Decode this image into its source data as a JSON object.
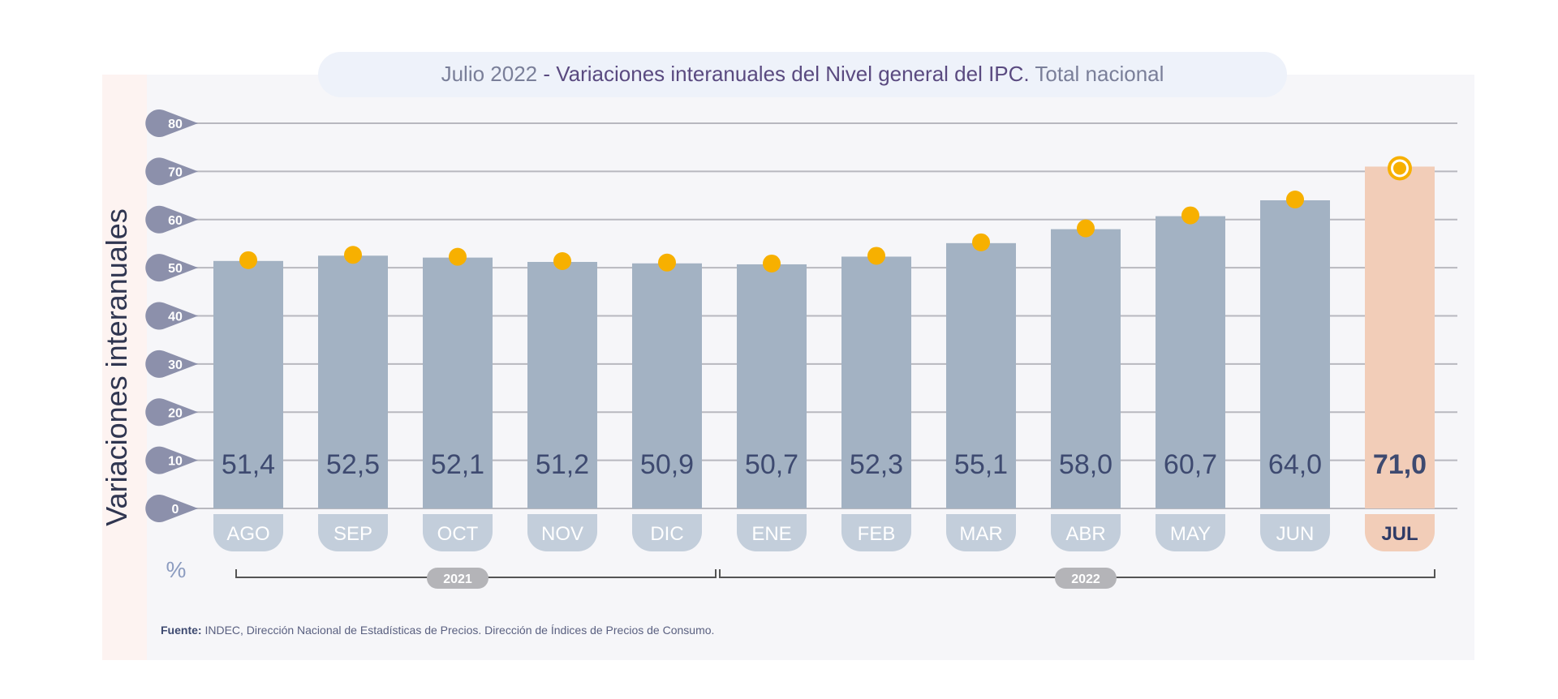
{
  "chart_data": {
    "type": "bar",
    "title_date": "Julio 2022",
    "title_main": " - Variaciones interanuales del Nivel general del IPC.",
    "title_suffix": " Total nacional",
    "ylabel": "Variaciones interanuales",
    "yunit": "%",
    "ylim": [
      0,
      80
    ],
    "yticks": [
      "0",
      "10",
      "20",
      "30",
      "40",
      "50",
      "60",
      "70",
      "80"
    ],
    "categories": [
      "AGO",
      "SEP",
      "OCT",
      "NOV",
      "DIC",
      "ENE",
      "FEB",
      "MAR",
      "ABR",
      "MAY",
      "JUN",
      "JUL"
    ],
    "values": [
      51.4,
      52.5,
      52.1,
      51.2,
      50.9,
      50.7,
      52.3,
      55.1,
      58.0,
      60.7,
      64.0,
      71.0
    ],
    "value_labels": [
      "51,4",
      "52,5",
      "52,1",
      "51,2",
      "50,9",
      "50,7",
      "52,3",
      "55,1",
      "58,0",
      "60,7",
      "64,0",
      "71,0"
    ],
    "highlight_index": 11,
    "year_groups": [
      {
        "label": "2021",
        "from": 0,
        "to": 4
      },
      {
        "label": "2022",
        "from": 5,
        "to": 11
      }
    ],
    "grid": true,
    "source_label": "Fuente:",
    "source_text": " INDEC, Dirección Nacional de Estadísticas de Precios. Dirección de Índices de Precios de Consumo.",
    "colors": {
      "bar": "#a3b2c3",
      "highlight_bar": "#f2cdb8",
      "dot": "#f7b000",
      "text": "#3e4a70",
      "tick_badge": "#8c90ab",
      "month_pill": "#c3cedb",
      "highlight_pill": "#f2cdb8"
    }
  }
}
